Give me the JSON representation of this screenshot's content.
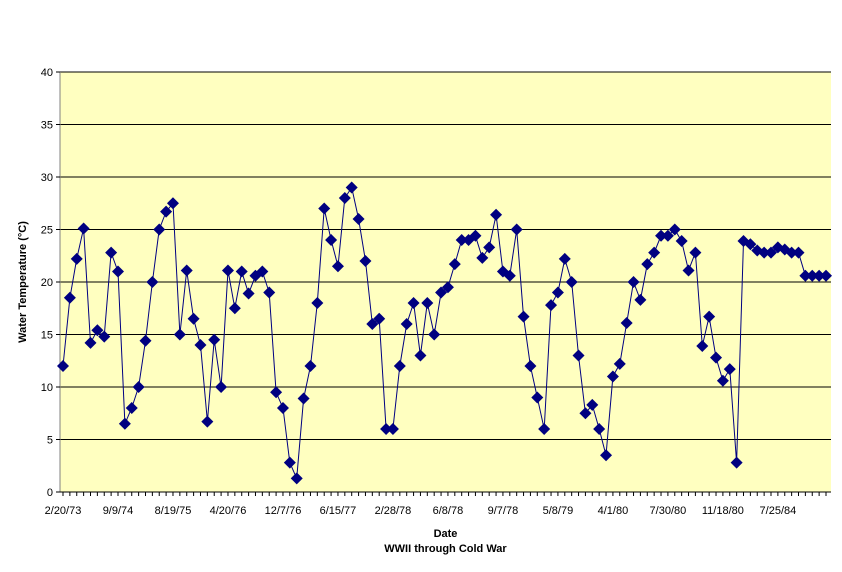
{
  "chart_data": {
    "type": "scatter",
    "connected": true,
    "title": "",
    "xlabel": "Date",
    "xsubtitle": "WWII through Cold War",
    "ylabel": "Water Temperature (°C)",
    "ylim": [
      0,
      40
    ],
    "yticks": [
      0,
      5,
      10,
      15,
      20,
      25,
      30,
      35,
      40
    ],
    "grid": true,
    "legend": "none",
    "x_tick_labels": [
      "2/20/73",
      "9/9/74",
      "8/19/75",
      "4/20/76",
      "12/7/76",
      "6/15/77",
      "2/28/78",
      "6/8/78",
      "9/7/78",
      "5/8/79",
      "4/1/80",
      "7/30/80",
      "11/18/80",
      "7/25/84"
    ],
    "x_tick_label_index": [
      0,
      8,
      16,
      24,
      32,
      40,
      48,
      56,
      64,
      72,
      80,
      88,
      96,
      104
    ],
    "colors": {
      "plot_background": "#FFFFC0",
      "series": "#000080",
      "gridline": "#000000"
    },
    "series": [
      {
        "values": [
          12,
          18.5,
          22.2,
          25.1,
          14.2,
          15.4,
          14.8,
          22.8,
          21,
          6.5,
          8,
          10,
          14.4,
          20,
          25,
          26.7,
          27.5,
          15,
          21.1,
          16.5,
          14,
          6.7,
          14.5,
          10,
          21.1,
          17.5,
          21,
          18.9,
          20.6,
          21,
          19,
          9.5,
          8,
          2.8,
          1.3,
          8.9,
          12,
          18,
          27,
          24,
          21.5,
          28,
          29,
          26,
          22,
          16,
          16.5,
          6,
          6,
          12,
          16,
          18,
          13,
          18,
          15,
          19,
          19.5,
          21.7,
          24,
          24,
          24.4,
          22.3,
          23.3,
          26.4,
          21,
          20.6,
          25,
          16.7,
          12,
          9,
          6,
          17.8,
          19,
          22.2,
          20,
          13,
          7.5,
          8.3,
          6,
          3.5,
          11,
          12.2,
          16.1,
          20,
          18.3,
          21.7,
          22.8,
          24.4,
          24.4,
          25,
          23.9,
          21.1,
          22.8,
          13.9,
          16.7,
          12.8,
          10.6,
          11.7,
          2.8,
          23.9,
          23.6,
          23,
          22.8,
          22.8,
          23.3,
          23.1,
          22.8,
          22.8,
          20.6,
          20.6,
          20.6,
          20.6
        ]
      }
    ]
  }
}
